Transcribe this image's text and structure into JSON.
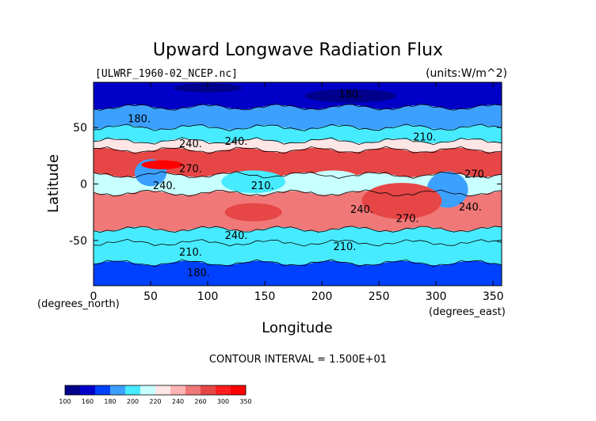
{
  "chart_data": {
    "type": "heatmap",
    "title": "Upward Longwave Radiation Flux",
    "subtitle_left": "[ULWRF_1960-02_NCEP.nc]",
    "subtitle_right": "(units:W/m^2)",
    "xlabel": "Longitude",
    "ylabel": "Latitude",
    "x_unit_note": "(degrees_east)",
    "y_unit_note": "(degrees_north)",
    "xlim": [
      0,
      357.5
    ],
    "ylim": [
      -90,
      90
    ],
    "x_ticks": [
      0,
      50,
      100,
      150,
      200,
      250,
      300,
      350
    ],
    "y_ticks": [
      -50,
      0,
      50
    ],
    "contour_interval_text": "CONTOUR INTERVAL = 1.500E+01",
    "contour_labels": [
      {
        "text": "180.",
        "lon": 225,
        "lat": 80
      },
      {
        "text": "180.",
        "lon": 40,
        "lat": 58
      },
      {
        "text": "240.",
        "lon": 85,
        "lat": 36
      },
      {
        "text": "240.",
        "lon": 125,
        "lat": 38
      },
      {
        "text": "210.",
        "lon": 290,
        "lat": 42
      },
      {
        "text": "270.",
        "lon": 85,
        "lat": 14
      },
      {
        "text": "270.",
        "lon": 335,
        "lat": 9
      },
      {
        "text": "240.",
        "lon": 62,
        "lat": -1
      },
      {
        "text": "210.",
        "lon": 148,
        "lat": -1
      },
      {
        "text": "240.",
        "lon": 235,
        "lat": -22
      },
      {
        "text": "270.",
        "lon": 275,
        "lat": -30
      },
      {
        "text": "240.",
        "lon": 330,
        "lat": -20
      },
      {
        "text": "240.",
        "lon": 125,
        "lat": -45
      },
      {
        "text": "210.",
        "lon": 85,
        "lat": -60
      },
      {
        "text": "210.",
        "lon": 220,
        "lat": -55
      },
      {
        "text": "180.",
        "lon": 92,
        "lat": -78
      }
    ],
    "colorbar": {
      "levels": [
        "100",
        "160",
        "180",
        "200",
        "220",
        "240",
        "260",
        "300",
        "350"
      ],
      "colors": [
        "#00008c",
        "#0000c8",
        "#0040ff",
        "#3ca0ff",
        "#46ebff",
        "#c8ffff",
        "#ffe6e6",
        "#ffb4b4",
        "#f07878",
        "#e64646",
        "#ff1e1e",
        "#ff0000"
      ]
    },
    "bands": [
      {
        "lat": [
          68,
          90
        ],
        "color": "#0000c8"
      },
      {
        "lat": [
          50,
          68
        ],
        "color": "#3ca0ff"
      },
      {
        "lat": [
          38,
          50
        ],
        "color": "#46ebff"
      },
      {
        "lat": [
          30,
          38
        ],
        "color": "#ffe6e6"
      },
      {
        "lat": [
          8,
          30
        ],
        "color": "#e64646"
      },
      {
        "lat": [
          -8,
          8
        ],
        "color": "#c8ffff"
      },
      {
        "lat": [
          -40,
          -8
        ],
        "color": "#f07878"
      },
      {
        "lat": [
          -52,
          -40
        ],
        "color": "#46ebff"
      },
      {
        "lat": [
          -70,
          -52
        ],
        "color": "#46ebff"
      },
      {
        "lat": [
          -90,
          -70
        ],
        "color": "#0040ff"
      }
    ],
    "blobs": [
      {
        "lon": 50,
        "lat": 10,
        "rx": 14,
        "ry": 12,
        "color": "#3ca0ff"
      },
      {
        "lon": 140,
        "lat": 2,
        "rx": 28,
        "ry": 10,
        "color": "#46ebff"
      },
      {
        "lon": 210,
        "lat": 5,
        "rx": 22,
        "ry": 7,
        "color": "#c8ffff"
      },
      {
        "lon": 310,
        "lat": -5,
        "rx": 18,
        "ry": 16,
        "color": "#3ca0ff"
      },
      {
        "lon": 60,
        "lat": 17,
        "rx": 18,
        "ry": 4,
        "color": "#ff0000"
      },
      {
        "lon": 270,
        "lat": -15,
        "rx": 35,
        "ry": 16,
        "color": "#e64646"
      },
      {
        "lon": 140,
        "lat": -25,
        "rx": 25,
        "ry": 8,
        "color": "#e64646"
      },
      {
        "lon": 225,
        "lat": 78,
        "rx": 40,
        "ry": 6,
        "color": "#00008c"
      },
      {
        "lon": 100,
        "lat": 85,
        "rx": 30,
        "ry": 4,
        "color": "#00008c"
      }
    ]
  }
}
